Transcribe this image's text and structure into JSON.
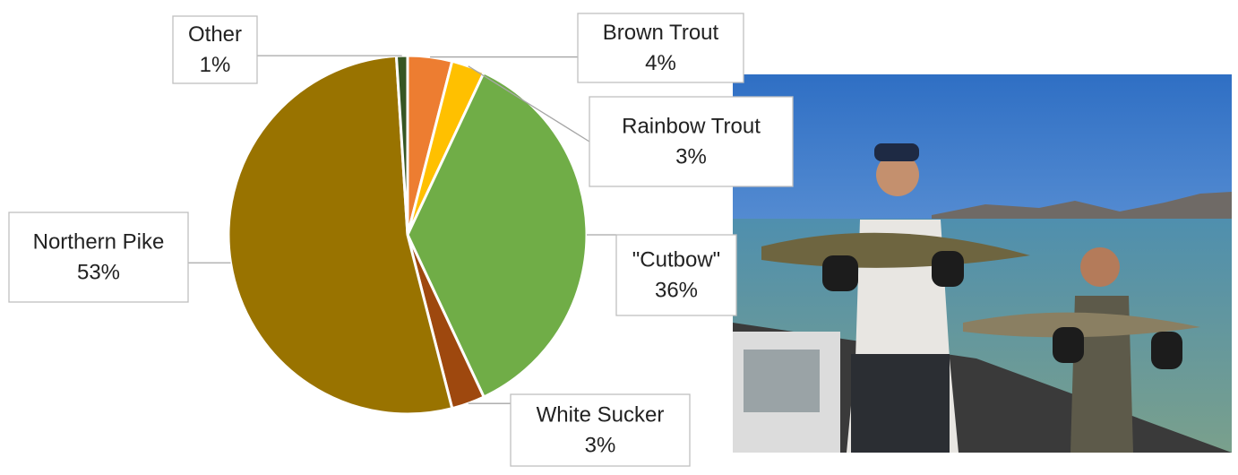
{
  "chart_data": {
    "type": "pie",
    "categories": [
      "Brown Trout",
      "Rainbow Trout",
      "\"Cutbow\"",
      "White Sucker",
      "Northern Pike",
      "Other"
    ],
    "values": [
      4,
      3,
      36,
      3,
      53,
      1
    ],
    "value_labels": [
      "4%",
      "3%",
      "36%",
      "3%",
      "53%",
      "1%"
    ],
    "colors": [
      "#ed7d31",
      "#ffc000",
      "#70ad47",
      "#9e480e",
      "#997300",
      "#375623"
    ]
  }
}
